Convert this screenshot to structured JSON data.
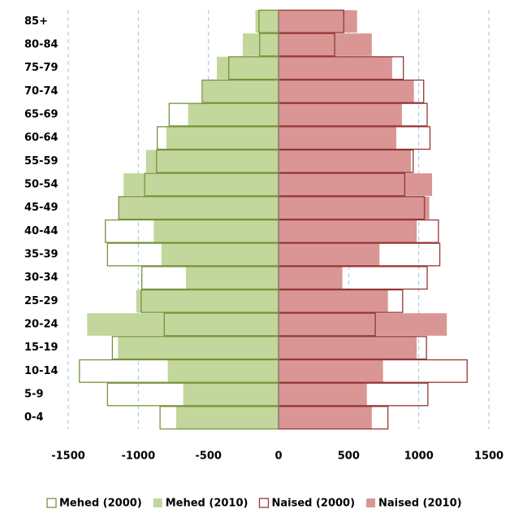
{
  "chart_data": {
    "type": "pyramid",
    "categories": [
      "0-4",
      "5-9",
      "10-14",
      "15-19",
      "20-24",
      "25-29",
      "30-34",
      "35-39",
      "40-44",
      "45-49",
      "50-54",
      "55-59",
      "60-64",
      "65-69",
      "70-74",
      "75-79",
      "80-84",
      "85+"
    ],
    "series": [
      {
        "name": "Mehed (2000)",
        "color": "#77933c",
        "filled": false,
        "values": [
          -845,
          -1220,
          -1420,
          -1185,
          -815,
          -980,
          -975,
          -1220,
          -1235,
          -1140,
          -955,
          -870,
          -865,
          -780,
          -545,
          -355,
          -135,
          -140
        ]
      },
      {
        "name": "Mehed (2010)",
        "color": "#c3d69b",
        "filled": true,
        "values": [
          -730,
          -680,
          -790,
          -1145,
          -1365,
          -1015,
          -660,
          -835,
          -890,
          -1135,
          -1105,
          -945,
          -800,
          -645,
          -540,
          -440,
          -255,
          -165
        ]
      },
      {
        "name": "Naised (2000)",
        "color": "#953735",
        "filled": false,
        "values": [
          780,
          1065,
          1345,
          1055,
          690,
          885,
          1060,
          1150,
          1140,
          1040,
          900,
          960,
          1080,
          1060,
          1035,
          890,
          400,
          465
        ]
      },
      {
        "name": "Naised (2010)",
        "color": "#d99694",
        "filled": true,
        "values": [
          665,
          630,
          745,
          985,
          1200,
          780,
          455,
          720,
          985,
          1075,
          1095,
          945,
          840,
          880,
          965,
          810,
          665,
          560
        ]
      }
    ],
    "xlim": [
      -1500,
      1500
    ],
    "xticks": [
      -1500,
      -1000,
      -500,
      0,
      500,
      1000,
      1500
    ],
    "grid": true,
    "legend": "bottom"
  }
}
